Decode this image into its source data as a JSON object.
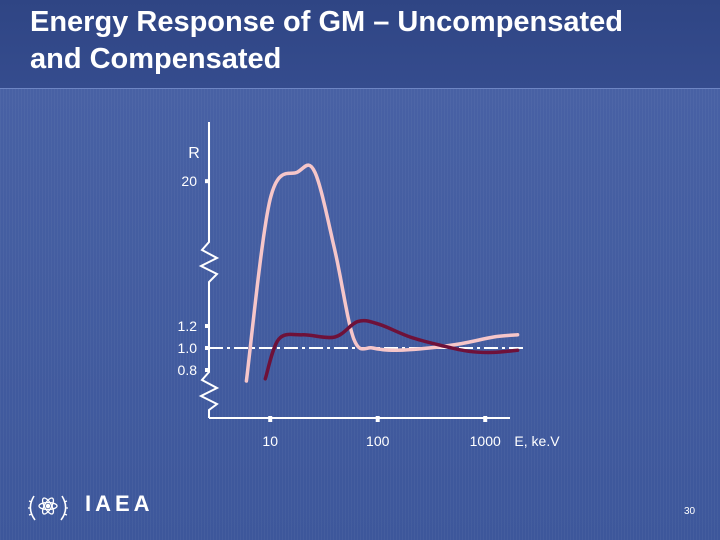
{
  "slide": {
    "title_line1": "Energy Response of GM – Uncompensated",
    "title_line2": "and Compensated",
    "logo_text": "IAEA",
    "page_number": "30"
  },
  "colors": {
    "uncompensated": "#f6c6c9",
    "compensated": "#6e1139",
    "axis": "#ffffff",
    "reference_line": "#ffffff"
  },
  "chart_data": {
    "type": "line",
    "title": "",
    "ylabel": "R",
    "xlabel": "E, ke.V",
    "x_scale": "log",
    "xlim": [
      3,
      2500
    ],
    "x_ticks": [
      {
        "value": 10,
        "label": "10"
      },
      {
        "value": 100,
        "label": "100"
      },
      {
        "value": 1000,
        "label": "1000"
      }
    ],
    "y_ticks": [
      {
        "value": 20,
        "label": "20"
      },
      {
        "value": 1.2,
        "label": "1.2"
      },
      {
        "value": 1.0,
        "label": "1.0"
      },
      {
        "value": 0.8,
        "label": "0.8"
      }
    ],
    "y_axis_breaks": 2,
    "reference_line": {
      "y": 1.0,
      "style": "dash-dot"
    },
    "series": [
      {
        "key": "uncompensated",
        "points": [
          [
            6,
            0.7
          ],
          [
            10,
            14
          ],
          [
            18,
            24
          ],
          [
            26,
            24
          ],
          [
            40,
            5
          ],
          [
            60,
            1.08
          ],
          [
            90,
            1.0
          ],
          [
            150,
            0.98
          ],
          [
            300,
            1.0
          ],
          [
            600,
            1.04
          ],
          [
            1200,
            1.1
          ],
          [
            2000,
            1.12
          ]
        ]
      },
      {
        "key": "compensated",
        "points": [
          [
            9,
            0.72
          ],
          [
            12,
            1.08
          ],
          [
            20,
            1.12
          ],
          [
            40,
            1.1
          ],
          [
            65,
            1.24
          ],
          [
            100,
            1.22
          ],
          [
            200,
            1.1
          ],
          [
            400,
            1.02
          ],
          [
            700,
            0.97
          ],
          [
            1200,
            0.96
          ],
          [
            2000,
            0.98
          ]
        ]
      }
    ]
  }
}
